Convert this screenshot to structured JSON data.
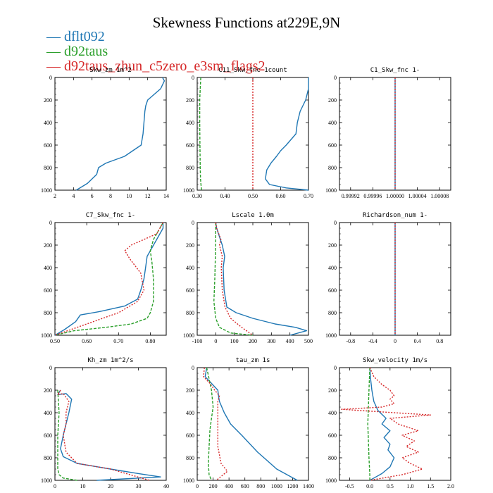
{
  "title": "Skewness Functions at229E,9N",
  "colors": {
    "dflt092": "#1f77b4",
    "d92taus": "#2ca02c",
    "d92taus_zhun": "#d62728"
  },
  "legend": [
    {
      "key": "dflt092",
      "label": "dflt092"
    },
    {
      "key": "d92taus",
      "label": "d92taus"
    },
    {
      "key": "d92taus_zhun",
      "label": "d92taus_zhun_c5zero_e3sm_flags2"
    }
  ],
  "chart_data": [
    {
      "type": "line",
      "title": "Skw_zm  1m^2",
      "xlim": [
        2,
        14
      ],
      "xticks": [
        2,
        4,
        6,
        8,
        10,
        12,
        14
      ],
      "xticklabels": [
        "2",
        "4",
        "6",
        "8",
        "10",
        "12",
        "14"
      ],
      "ylim": [
        0,
        1000
      ],
      "yticks": [
        0,
        200,
        400,
        600,
        800,
        1000
      ],
      "series": [
        {
          "name": "dflt092",
          "x": [
            13.6,
            13.8,
            13.4,
            12.0,
            11.8,
            11.7,
            11.6,
            11.5,
            11.3,
            9.5,
            7.5,
            6.7,
            6.5,
            5.5,
            4.3
          ],
          "y": [
            0,
            30,
            100,
            200,
            250,
            300,
            400,
            500,
            600,
            700,
            760,
            800,
            860,
            940,
            1000
          ]
        }
      ]
    },
    {
      "type": "line",
      "title": "C11_Skw_fnc  1count",
      "xlim": [
        0.3,
        0.7
      ],
      "xticks": [
        0.3,
        0.4,
        0.5,
        0.6,
        0.7
      ],
      "xticklabels": [
        "0.30",
        "0.40",
        "0.50",
        "0.60",
        "0.70"
      ],
      "ylim": [
        0,
        1000
      ],
      "yticks": [
        0,
        200,
        400,
        600,
        800,
        1000
      ],
      "series": [
        {
          "name": "dflt092",
          "x": [
            0.7,
            0.7,
            0.69,
            0.67,
            0.66,
            0.655,
            0.62,
            0.6,
            0.585,
            0.565,
            0.55,
            0.545,
            0.56,
            0.62,
            0.7
          ],
          "y": [
            0,
            100,
            200,
            300,
            400,
            500,
            600,
            650,
            700,
            760,
            820,
            900,
            950,
            980,
            1000
          ]
        },
        {
          "name": "d92taus",
          "x": [
            0.313,
            0.311,
            0.309,
            0.309,
            0.31,
            0.311,
            0.312,
            0.314,
            0.316
          ],
          "y": [
            0,
            100,
            200,
            400,
            600,
            800,
            900,
            960,
            1000
          ]
        },
        {
          "name": "d92taus_zhun",
          "x": [
            0.5,
            0.5
          ],
          "y": [
            0,
            1000
          ]
        }
      ]
    },
    {
      "type": "line",
      "title": "C1_Skw_fnc  1-",
      "xlim": [
        0.9999,
        1.0001
      ],
      "xticks": [
        0.99992,
        0.99996,
        1.0,
        1.00004,
        1.00008
      ],
      "xticklabels": [
        "0.99992",
        "0.99996",
        "1.00000",
        "1.00004",
        "1.00008"
      ],
      "ylim": [
        0,
        1000
      ],
      "yticks": [
        0,
        200,
        400,
        600,
        800,
        1000
      ],
      "series": [
        {
          "name": "dflt092",
          "x": [
            1.0,
            1.0
          ],
          "y": [
            0,
            1000
          ]
        },
        {
          "name": "d92taus_zhun",
          "x": [
            1.0,
            1.0
          ],
          "y": [
            0,
            1000
          ]
        }
      ]
    },
    {
      "type": "line",
      "title": "C7_Skw_fnc  1-",
      "xlim": [
        0.5,
        0.85
      ],
      "xticks": [
        0.5,
        0.6,
        0.7,
        0.8
      ],
      "xticklabels": [
        "0.50",
        "0.60",
        "0.70",
        "0.80"
      ],
      "ylim": [
        0,
        1000
      ],
      "yticks": [
        0,
        200,
        400,
        600,
        800,
        1000
      ],
      "series": [
        {
          "name": "dflt092",
          "x": [
            0.84,
            0.84,
            0.82,
            0.79,
            0.785,
            0.78,
            0.77,
            0.76,
            0.72,
            0.64,
            0.58,
            0.565,
            0.53,
            0.5
          ],
          "y": [
            0,
            50,
            150,
            300,
            400,
            500,
            600,
            680,
            740,
            790,
            820,
            880,
            950,
            1000
          ]
        },
        {
          "name": "d92taus",
          "x": [
            0.84,
            0.83,
            0.81,
            0.8,
            0.805,
            0.81,
            0.81,
            0.8,
            0.79,
            0.74,
            0.66,
            0.56,
            0.5
          ],
          "y": [
            0,
            50,
            150,
            250,
            350,
            500,
            700,
            800,
            850,
            900,
            930,
            960,
            1000
          ]
        },
        {
          "name": "d92taus_zhun",
          "x": [
            0.84,
            0.82,
            0.74,
            0.72,
            0.735,
            0.77,
            0.78,
            0.76,
            0.7,
            0.64,
            0.58,
            0.5
          ],
          "y": [
            0,
            100,
            200,
            250,
            320,
            450,
            600,
            700,
            800,
            860,
            920,
            1000
          ]
        }
      ]
    },
    {
      "type": "line",
      "title": "Lscale  1.0m",
      "xlim": [
        -100,
        500
      ],
      "xticks": [
        -100,
        0,
        100,
        200,
        300,
        400,
        500
      ],
      "xticklabels": [
        "-100",
        "0",
        "100",
        "200",
        "300",
        "400",
        "500"
      ],
      "ylim": [
        0,
        1000
      ],
      "yticks": [
        0,
        200,
        400,
        600,
        800,
        1000
      ],
      "series": [
        {
          "name": "dflt092",
          "x": [
            0,
            5,
            25,
            35,
            48,
            40,
            45,
            60,
            110,
            200,
            320,
            430,
            490,
            400
          ],
          "y": [
            0,
            50,
            150,
            200,
            300,
            400,
            600,
            750,
            800,
            850,
            900,
            930,
            960,
            1000
          ]
        },
        {
          "name": "d92taus",
          "x": [
            0,
            0,
            -2,
            -5,
            -10,
            0,
            20,
            80,
            200
          ],
          "y": [
            0,
            100,
            300,
            500,
            700,
            850,
            930,
            980,
            1000
          ]
        },
        {
          "name": "d92taus_zhun",
          "x": [
            0,
            5,
            28,
            20,
            35,
            30,
            35,
            50,
            80,
            140,
            200
          ],
          "y": [
            0,
            50,
            150,
            200,
            300,
            400,
            600,
            750,
            850,
            930,
            1000
          ]
        }
      ]
    },
    {
      "type": "line",
      "title": "Richardson_num  1-",
      "xlim": [
        -1.0,
        1.0
      ],
      "xticks": [
        -0.8,
        -0.4,
        0,
        0.4,
        0.8
      ],
      "xticklabels": [
        "-0.8",
        "-0.4",
        "0",
        "0.4",
        "0.8"
      ],
      "ylim": [
        0,
        1000
      ],
      "yticks": [
        0,
        200,
        400,
        600,
        800,
        1000
      ],
      "series": [
        {
          "name": "dflt092",
          "x": [
            0,
            0
          ],
          "y": [
            0,
            1000
          ]
        },
        {
          "name": "d92taus_zhun",
          "x": [
            0,
            0
          ],
          "y": [
            0,
            1000
          ]
        }
      ]
    },
    {
      "type": "line",
      "title": "Kh_zm  1m^2/s",
      "xlim": [
        0,
        40
      ],
      "xticks": [
        0,
        10,
        20,
        30,
        40
      ],
      "xticklabels": [
        "0",
        "10",
        "20",
        "30",
        "40"
      ],
      "ylim": [
        0,
        1000
      ],
      "yticks": [
        0,
        200,
        400,
        600,
        800,
        1000
      ],
      "series": [
        {
          "name": "dflt092",
          "x": [
            2,
            1,
            4,
            6,
            5,
            4,
            3,
            2,
            3,
            8,
            20,
            30,
            38,
            15
          ],
          "y": [
            200,
            240,
            230,
            280,
            400,
            500,
            600,
            720,
            790,
            850,
            900,
            940,
            970,
            1000
          ]
        },
        {
          "name": "d92taus",
          "x": [
            1,
            1.5,
            1,
            1,
            1,
            1.5,
            3,
            8
          ],
          "y": [
            200,
            400,
            600,
            800,
            900,
            950,
            980,
            1000
          ]
        },
        {
          "name": "d92taus_zhun",
          "x": [
            2,
            1,
            3,
            5,
            4,
            4,
            3,
            4,
            8,
            20,
            34
          ],
          "y": [
            200,
            240,
            230,
            300,
            400,
            500,
            600,
            750,
            850,
            900,
            1000
          ]
        }
      ]
    },
    {
      "type": "line",
      "title": "tau_zm  1s",
      "xlim": [
        0,
        1400
      ],
      "xticks": [
        0,
        200,
        400,
        600,
        800,
        1000,
        1200,
        1400
      ],
      "xticklabels": [
        "0",
        "200",
        "400",
        "600",
        "800",
        "1000",
        "1200",
        "1400"
      ],
      "ylim": [
        0,
        1000
      ],
      "yticks": [
        0,
        200,
        400,
        600,
        800,
        1000
      ],
      "series": [
        {
          "name": "dflt092",
          "x": [
            120,
            100,
            180,
            260,
            270,
            280,
            340,
            420,
            560,
            760,
            1000,
            1260
          ],
          "y": [
            0,
            80,
            140,
            200,
            260,
            300,
            400,
            500,
            600,
            750,
            900,
            1000
          ]
        },
        {
          "name": "d92taus",
          "x": [
            120,
            150,
            180,
            200,
            180,
            160,
            150,
            140,
            150,
            180
          ],
          "y": [
            0,
            100,
            200,
            350,
            450,
            550,
            700,
            850,
            950,
            1000
          ]
        },
        {
          "name": "d92taus_zhun",
          "x": [
            90,
            80,
            160,
            220,
            280,
            260,
            260,
            260,
            300,
            380,
            240
          ],
          "y": [
            0,
            80,
            140,
            200,
            250,
            300,
            500,
            700,
            850,
            920,
            1000
          ]
        }
      ]
    },
    {
      "type": "line",
      "title": "Skw_velocity  1m/s",
      "xlim": [
        -0.75,
        2.0
      ],
      "xticks": [
        -0.5,
        0,
        0.5,
        1.0,
        1.5,
        2.0
      ],
      "xticklabels": [
        "-0.5",
        "0.0",
        "0.5",
        "1.0",
        "1.5",
        "2.0"
      ],
      "ylim": [
        0,
        1000
      ],
      "yticks": [
        0,
        200,
        400,
        600,
        800,
        1000
      ],
      "series": [
        {
          "name": "dflt092",
          "x": [
            0,
            0.02,
            0.05,
            0.1,
            0.2,
            0.4,
            0.3,
            0.5,
            0.35,
            0.5,
            0.45,
            0.6,
            0.5,
            0.3,
            0.1,
            0
          ],
          "y": [
            0,
            100,
            200,
            300,
            380,
            450,
            500,
            560,
            620,
            680,
            730,
            800,
            880,
            940,
            980,
            1000
          ]
        },
        {
          "name": "d92taus",
          "x": [
            0,
            -0.02,
            -0.04,
            -0.05,
            -0.04,
            -0.03,
            -0.02,
            0,
            0
          ],
          "y": [
            0,
            200,
            400,
            500,
            600,
            700,
            800,
            950,
            1000
          ]
        },
        {
          "name": "d92taus_zhun",
          "x": [
            0,
            0.1,
            0.3,
            0.5,
            0.6,
            0.5,
            0.6,
            0.3,
            -0.7,
            1.5,
            0.5,
            0.7,
            1.2,
            0.8,
            1.1,
            0.9,
            1.2,
            0.8,
            1.0,
            1.3,
            0.8,
            0
          ],
          "y": [
            0,
            80,
            150,
            200,
            250,
            280,
            320,
            350,
            370,
            420,
            450,
            500,
            560,
            600,
            650,
            700,
            750,
            800,
            850,
            900,
            950,
            1000
          ]
        }
      ]
    }
  ]
}
